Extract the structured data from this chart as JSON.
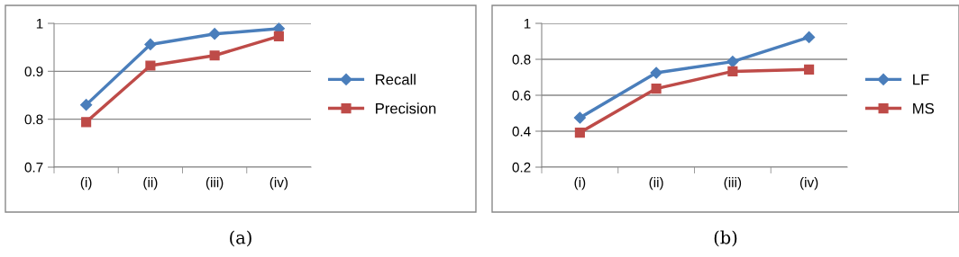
{
  "chart_data": [
    {
      "type": "line",
      "categories": [
        "(i)",
        "(ii)",
        "(iii)",
        "(iv)"
      ],
      "ylim": [
        0.7,
        1
      ],
      "yticks": [
        0.7,
        0.8,
        0.9,
        1
      ],
      "grid": "y",
      "legend": "right",
      "series": [
        {
          "name": "Recall",
          "color": "#4a7ebb",
          "marker": "diamond",
          "values": [
            0.83,
            0.956,
            0.978,
            0.989
          ]
        },
        {
          "name": "Precision",
          "color": "#be4b48",
          "marker": "square",
          "values": [
            0.794,
            0.912,
            0.933,
            0.973
          ]
        }
      ],
      "annotations": [
        "(a)"
      ]
    },
    {
      "type": "line",
      "categories": [
        "(i)",
        "(ii)",
        "(iii)",
        "(iv)"
      ],
      "ylim": [
        0.2,
        1
      ],
      "yticks": [
        0.2,
        0.4,
        0.6,
        0.8,
        1
      ],
      "grid": "y",
      "legend": "right",
      "series": [
        {
          "name": "LF",
          "color": "#4a7ebb",
          "marker": "diamond",
          "values": [
            0.475,
            0.725,
            0.787,
            0.923
          ]
        },
        {
          "name": "MS",
          "color": "#be4b48",
          "marker": "square",
          "values": [
            0.392,
            0.637,
            0.733,
            0.743
          ]
        }
      ],
      "annotations": [
        "(b)"
      ]
    }
  ]
}
